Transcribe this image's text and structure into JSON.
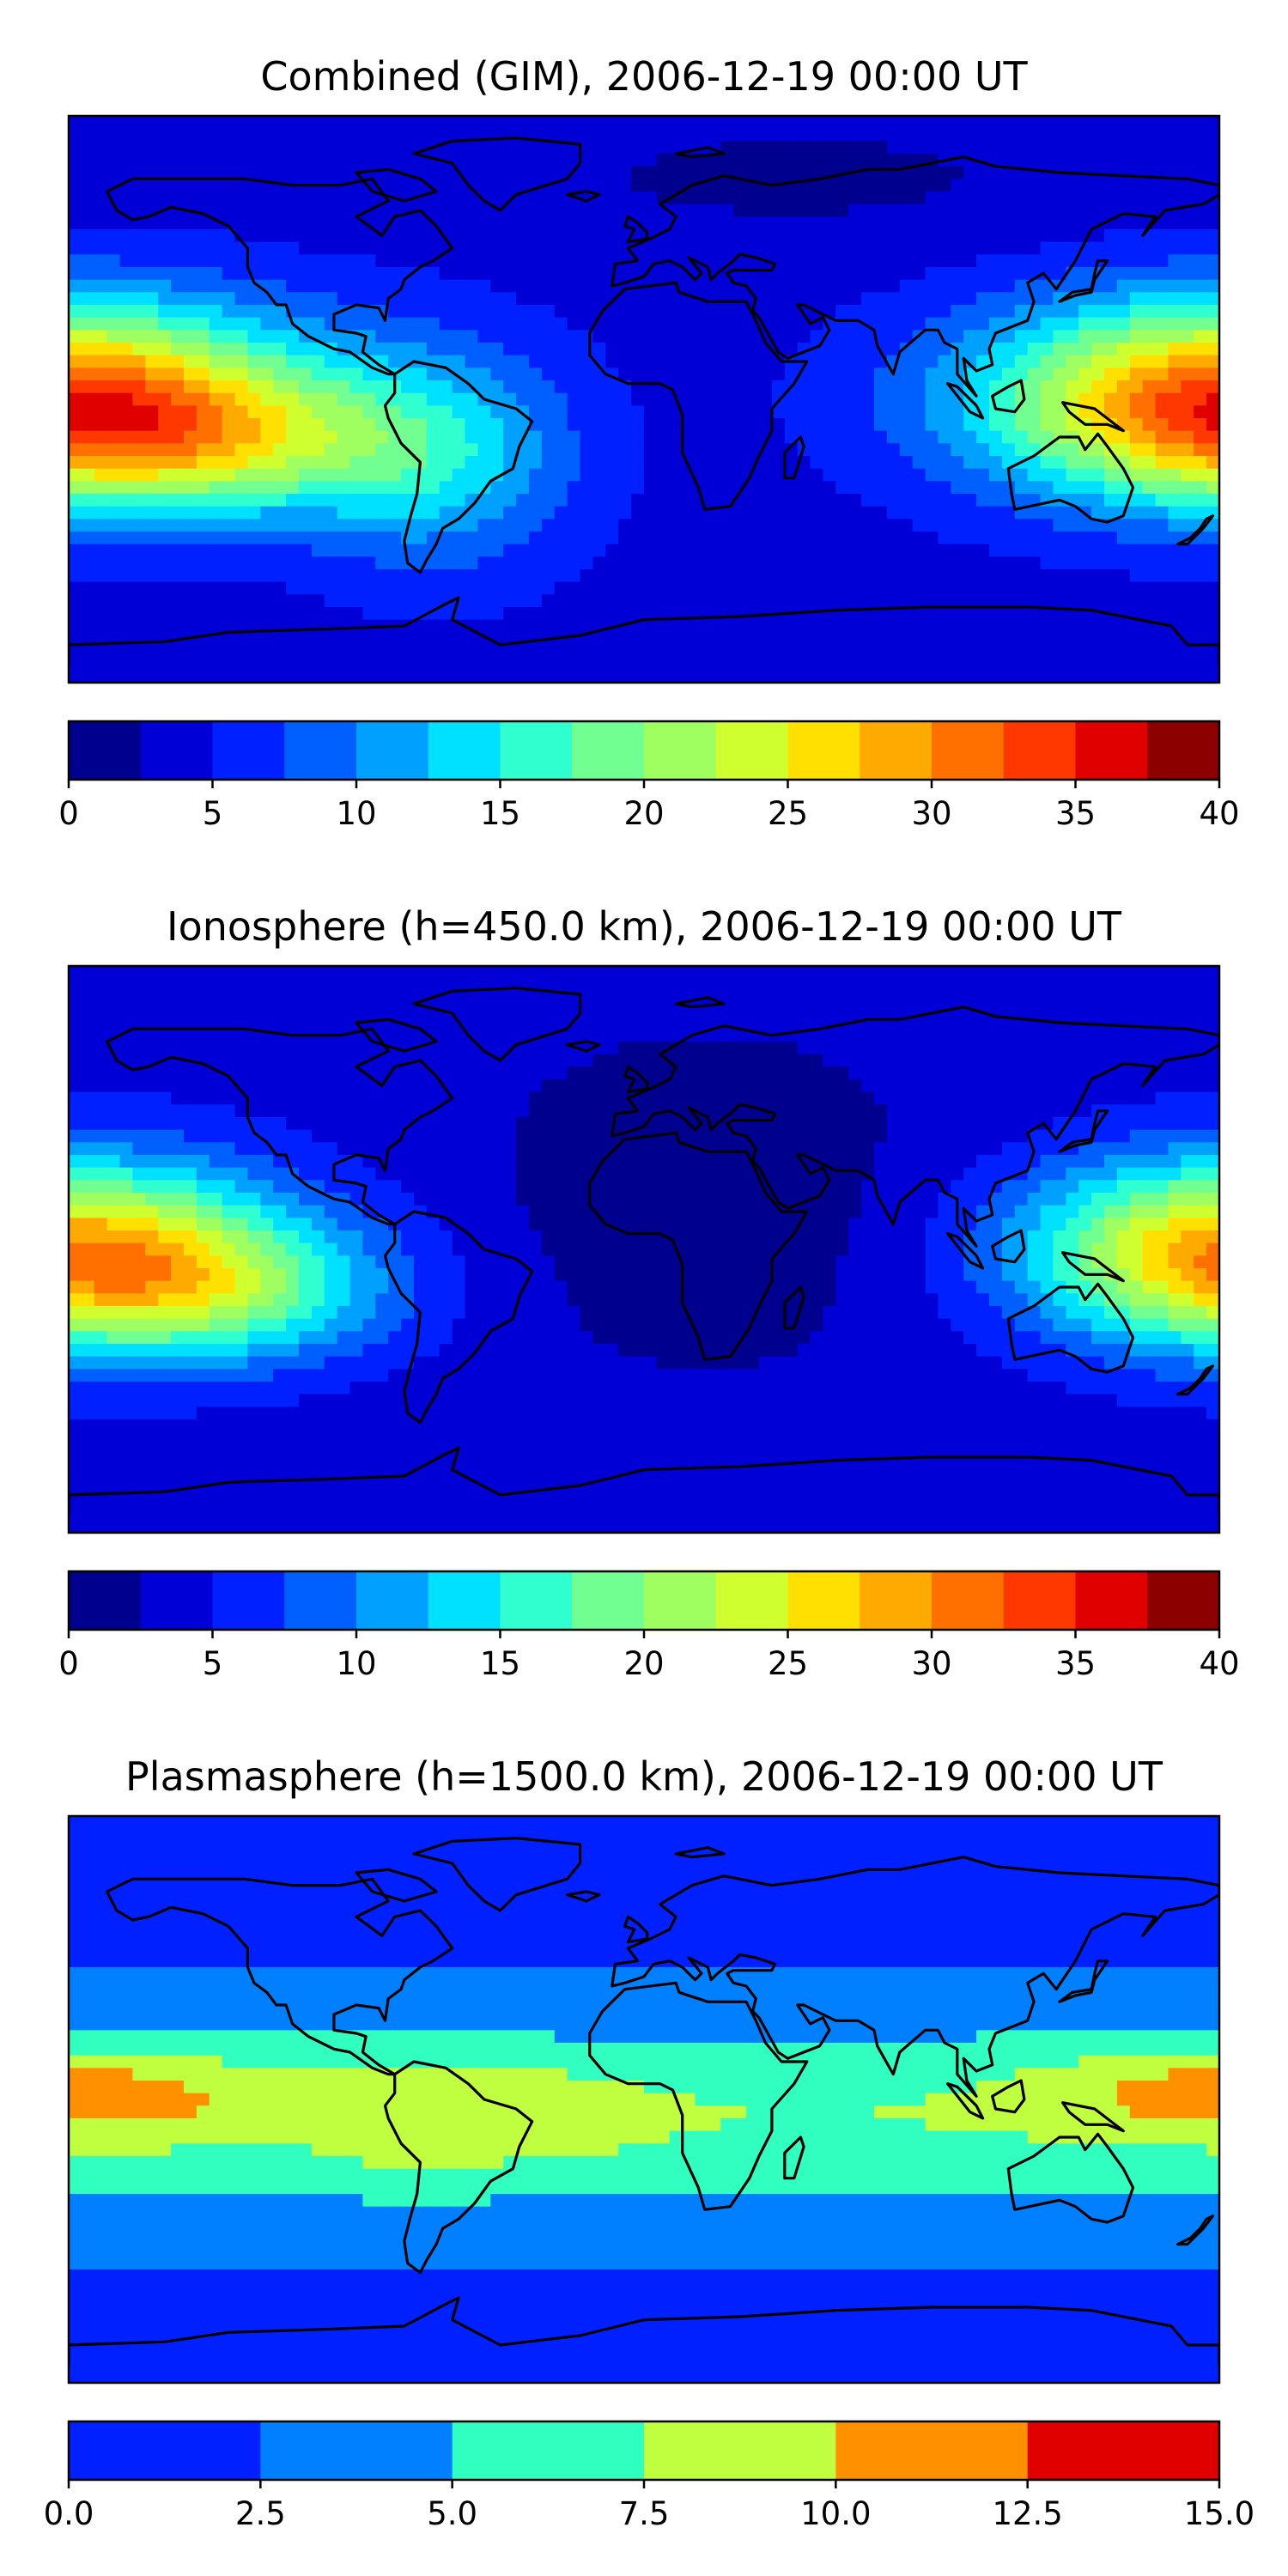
{
  "palette_jet14": [
    "#00008f",
    "#0000d6",
    "#0020ff",
    "#0060ff",
    "#00a0ff",
    "#00e0ff",
    "#30ffd0",
    "#70ff90",
    "#a0ff60",
    "#d0ff30",
    "#ffe000",
    "#ffaa00",
    "#ff7000",
    "#ff3800",
    "#e00000",
    "#8c0000"
  ],
  "chart_data": [
    {
      "type": "heatmap",
      "title": "Combined (GIM), 2006-12-19 00:00 UT",
      "colorbar": {
        "min": 0,
        "max": 40,
        "step": 2.5,
        "ticks": [
          "0",
          "5",
          "10",
          "15",
          "20",
          "25",
          "30",
          "35",
          "40"
        ]
      },
      "field": {
        "base": 4,
        "n_bands": 16,
        "blobs": [
          {
            "lon": -175,
            "lat": 0,
            "amp": 15,
            "slon": 60,
            "slat": 22
          },
          {
            "lon": -135,
            "lat": -15,
            "amp": 10,
            "slon": 45,
            "slat": 15
          },
          {
            "lon": 175,
            "lat": 0,
            "amp": 13,
            "slon": 45,
            "slat": 22
          },
          {
            "lon": -65,
            "lat": -20,
            "amp": 8,
            "slon": 30,
            "slat": 25
          },
          {
            "lon": 50,
            "lat": 70,
            "amp": -2,
            "slon": 70,
            "slat": 15
          }
        ]
      }
    },
    {
      "type": "heatmap",
      "title": "Ionosphere  (h=450.0 km), 2006-12-19 00:00 UT",
      "colorbar": {
        "min": 0,
        "max": 40,
        "step": 2.5,
        "ticks": [
          "0",
          "5",
          "10",
          "15",
          "20",
          "25",
          "30",
          "35",
          "40"
        ]
      },
      "field": {
        "base": 4,
        "n_bands": 16,
        "blobs": [
          {
            "lon": -170,
            "lat": 0,
            "amp": 13,
            "slon": 50,
            "slat": 20
          },
          {
            "lon": -135,
            "lat": -15,
            "amp": 10,
            "slon": 40,
            "slat": 15
          },
          {
            "lon": 175,
            "lat": 0,
            "amp": 11,
            "slon": 40,
            "slat": 20
          },
          {
            "lon": 20,
            "lat": 15,
            "amp": -3,
            "slon": 60,
            "slat": 45
          }
        ]
      }
    },
    {
      "type": "heatmap",
      "title": "Plasmasphere (h=1500.0 km), 2006-12-19 00:00 UT",
      "colorbar": {
        "min": 0,
        "max": 15,
        "step": 2.5,
        "ticks": [
          "0.0",
          "2.5",
          "5.0",
          "7.5",
          "10.0",
          "12.5",
          "15.0"
        ]
      },
      "field": {
        "base": 2,
        "n_bands": 6,
        "colors": [
          "#0020ff",
          "#0080ff",
          "#30ffc0",
          "#c0ff40",
          "#ff9000",
          "#e00000"
        ],
        "blobs": [
          {
            "lon": 0,
            "lat": -5,
            "amp": 5.5,
            "slon": 600,
            "slat": 22
          },
          {
            "lon": -160,
            "lat": 0,
            "amp": 2.5,
            "slon": 40,
            "slat": 10
          },
          {
            "lon": 170,
            "lat": 5,
            "amp": 2.5,
            "slon": 35,
            "slat": 10
          },
          {
            "lon": -30,
            "lat": -5,
            "amp": 2,
            "slon": 20,
            "slat": 10
          },
          {
            "lon": -70,
            "lat": -10,
            "amp": 2,
            "slon": 20,
            "slat": 15
          }
        ]
      }
    }
  ],
  "coastlines": [
    {
      "name": "north-america",
      "pts": [
        [
          -168,
          66
        ],
        [
          -160,
          70
        ],
        [
          -140,
          70
        ],
        [
          -125,
          70
        ],
        [
          -110,
          68
        ],
        [
          -95,
          68
        ],
        [
          -85,
          70
        ],
        [
          -80,
          63
        ],
        [
          -90,
          58
        ],
        [
          -82,
          52
        ],
        [
          -78,
          58
        ],
        [
          -70,
          60
        ],
        [
          -65,
          55
        ],
        [
          -60,
          48
        ],
        [
          -66,
          44
        ],
        [
          -70,
          42
        ],
        [
          -75,
          38
        ],
        [
          -76,
          35
        ],
        [
          -80,
          32
        ],
        [
          -81,
          25
        ],
        [
          -83,
          29
        ],
        [
          -90,
          30
        ],
        [
          -97,
          27
        ],
        [
          -97,
          22
        ],
        [
          -90,
          21
        ],
        [
          -87,
          20
        ],
        [
          -88,
          15
        ],
        [
          -83,
          11
        ],
        [
          -78,
          8
        ],
        [
          -80,
          8
        ],
        [
          -85,
          10
        ],
        [
          -92,
          15
        ],
        [
          -97,
          16
        ],
        [
          -105,
          20
        ],
        [
          -110,
          24
        ],
        [
          -112,
          30
        ],
        [
          -115,
          30
        ],
        [
          -118,
          34
        ],
        [
          -122,
          37
        ],
        [
          -124,
          42
        ],
        [
          -124,
          48
        ],
        [
          -130,
          55
        ],
        [
          -138,
          59
        ],
        [
          -148,
          61
        ],
        [
          -155,
          58
        ],
        [
          -160,
          57
        ],
        [
          -165,
          60
        ],
        [
          -168,
          66
        ]
      ]
    },
    {
      "name": "south-america",
      "pts": [
        [
          -78,
          8
        ],
        [
          -72,
          12
        ],
        [
          -62,
          10
        ],
        [
          -55,
          5
        ],
        [
          -50,
          0
        ],
        [
          -40,
          -3
        ],
        [
          -35,
          -7
        ],
        [
          -39,
          -15
        ],
        [
          -41,
          -22
        ],
        [
          -48,
          -26
        ],
        [
          -53,
          -33
        ],
        [
          -58,
          -38
        ],
        [
          -63,
          -41
        ],
        [
          -65,
          -46
        ],
        [
          -68,
          -51
        ],
        [
          -70,
          -55
        ],
        [
          -74,
          -52
        ],
        [
          -75,
          -45
        ],
        [
          -73,
          -37
        ],
        [
          -71,
          -30
        ],
        [
          -70,
          -20
        ],
        [
          -76,
          -14
        ],
        [
          -80,
          -6
        ],
        [
          -81,
          -2
        ],
        [
          -78,
          2
        ],
        [
          -78,
          8
        ]
      ]
    },
    {
      "name": "greenland",
      "pts": [
        [
          -72,
          78
        ],
        [
          -60,
          82
        ],
        [
          -40,
          83
        ],
        [
          -20,
          81
        ],
        [
          -20,
          75
        ],
        [
          -24,
          70
        ],
        [
          -40,
          65
        ],
        [
          -45,
          60
        ],
        [
          -50,
          63
        ],
        [
          -55,
          68
        ],
        [
          -60,
          75
        ],
        [
          -72,
          78
        ]
      ]
    },
    {
      "name": "eurasia",
      "pts": [
        [
          -10,
          36
        ],
        [
          -9,
          43
        ],
        [
          -2,
          44
        ],
        [
          -5,
          48
        ],
        [
          2,
          51
        ],
        [
          8,
          54
        ],
        [
          10,
          58
        ],
        [
          5,
          62
        ],
        [
          15,
          68
        ],
        [
          25,
          71
        ],
        [
          40,
          68
        ],
        [
          55,
          70
        ],
        [
          70,
          73
        ],
        [
          80,
          73
        ],
        [
          100,
          77
        ],
        [
          110,
          74
        ],
        [
          130,
          72
        ],
        [
          150,
          71
        ],
        [
          170,
          70
        ],
        [
          180,
          68
        ],
        [
          180,
          65
        ],
        [
          175,
          62
        ],
        [
          163,
          60
        ],
        [
          156,
          52
        ],
        [
          160,
          58
        ],
        [
          150,
          59
        ],
        [
          140,
          54
        ],
        [
          135,
          44
        ],
        [
          129,
          35
        ],
        [
          125,
          40
        ],
        [
          120,
          37
        ],
        [
          122,
          31
        ],
        [
          120,
          25
        ],
        [
          110,
          21
        ],
        [
          108,
          16
        ],
        [
          109,
          11
        ],
        [
          104,
          9
        ],
        [
          100,
          13
        ],
        [
          101,
          6
        ],
        [
          104,
          1
        ],
        [
          98,
          8
        ],
        [
          98,
          16
        ],
        [
          94,
          18
        ],
        [
          92,
          22
        ],
        [
          88,
          22
        ],
        [
          80,
          15
        ],
        [
          78,
          8
        ],
        [
          73,
          17
        ],
        [
          72,
          22
        ],
        [
          67,
          25
        ],
        [
          60,
          25
        ],
        [
          56,
          27
        ],
        [
          50,
          30
        ],
        [
          48,
          30
        ],
        [
          52,
          24
        ],
        [
          56,
          26
        ],
        [
          58,
          22
        ],
        [
          55,
          17
        ],
        [
          45,
          13
        ],
        [
          42,
          15
        ],
        [
          36,
          26
        ],
        [
          34,
          28
        ],
        [
          35,
          32
        ],
        [
          32,
          36
        ],
        [
          28,
          37
        ],
        [
          26,
          40
        ],
        [
          28,
          41
        ],
        [
          40,
          41
        ],
        [
          41,
          43
        ],
        [
          35,
          45
        ],
        [
          30,
          46
        ],
        [
          28,
          44
        ],
        [
          23,
          40
        ],
        [
          21,
          38
        ],
        [
          20,
          42
        ],
        [
          14,
          45
        ],
        [
          18,
          40
        ],
        [
          16,
          38
        ],
        [
          12,
          42
        ],
        [
          8,
          44
        ],
        [
          3,
          43
        ],
        [
          0,
          39
        ],
        [
          -6,
          37
        ],
        [
          -10,
          36
        ]
      ]
    },
    {
      "name": "africa",
      "pts": [
        [
          -17,
          21
        ],
        [
          -13,
          28
        ],
        [
          -6,
          35
        ],
        [
          10,
          37
        ],
        [
          11,
          34
        ],
        [
          20,
          31
        ],
        [
          32,
          31
        ],
        [
          35,
          25
        ],
        [
          38,
          18
        ],
        [
          43,
          12
        ],
        [
          51,
          12
        ],
        [
          47,
          5
        ],
        [
          40,
          -3
        ],
        [
          40,
          -10
        ],
        [
          36,
          -18
        ],
        [
          33,
          -25
        ],
        [
          27,
          -34
        ],
        [
          19,
          -35
        ],
        [
          17,
          -28
        ],
        [
          12,
          -17
        ],
        [
          12,
          -5
        ],
        [
          9,
          3
        ],
        [
          5,
          5
        ],
        [
          -5,
          5
        ],
        [
          -12,
          8
        ],
        [
          -17,
          14
        ],
        [
          -17,
          21
        ]
      ]
    },
    {
      "name": "australia",
      "pts": [
        [
          114,
          -22
        ],
        [
          122,
          -18
        ],
        [
          130,
          -12
        ],
        [
          136,
          -12
        ],
        [
          138,
          -16
        ],
        [
          142,
          -11
        ],
        [
          145,
          -15
        ],
        [
          150,
          -22
        ],
        [
          153,
          -28
        ],
        [
          150,
          -37
        ],
        [
          145,
          -39
        ],
        [
          140,
          -38
        ],
        [
          135,
          -34
        ],
        [
          130,
          -32
        ],
        [
          116,
          -35
        ],
        [
          115,
          -30
        ],
        [
          114,
          -22
        ]
      ]
    },
    {
      "name": "antarctica",
      "pts": [
        [
          -180,
          -84
        ],
        [
          -180,
          -78
        ],
        [
          -150,
          -77
        ],
        [
          -130,
          -74
        ],
        [
          -100,
          -73
        ],
        [
          -75,
          -72
        ],
        [
          -62,
          -65
        ],
        [
          -58,
          -63
        ],
        [
          -60,
          -70
        ],
        [
          -45,
          -78
        ],
        [
          -20,
          -75
        ],
        [
          0,
          -70
        ],
        [
          30,
          -69
        ],
        [
          60,
          -67
        ],
        [
          90,
          -66
        ],
        [
          120,
          -66
        ],
        [
          140,
          -67
        ],
        [
          165,
          -72
        ],
        [
          170,
          -78
        ],
        [
          180,
          -78
        ],
        [
          180,
          -84
        ]
      ]
    },
    {
      "name": "britain",
      "pts": [
        [
          -5,
          50
        ],
        [
          1,
          51
        ],
        [
          1,
          53
        ],
        [
          -2,
          56
        ],
        [
          -5,
          58
        ],
        [
          -6,
          55
        ],
        [
          -3,
          54
        ],
        [
          -5,
          50
        ]
      ]
    },
    {
      "name": "madagascar",
      "pts": [
        [
          44,
          -25
        ],
        [
          47,
          -25
        ],
        [
          50,
          -15
        ],
        [
          49,
          -12
        ],
        [
          44,
          -17
        ],
        [
          44,
          -25
        ]
      ]
    },
    {
      "name": "japan",
      "pts": [
        [
          130,
          31
        ],
        [
          134,
          34
        ],
        [
          140,
          35
        ],
        [
          141,
          40
        ],
        [
          142,
          44
        ],
        [
          145,
          44
        ],
        [
          141,
          38
        ],
        [
          140,
          34
        ],
        [
          135,
          33
        ],
        [
          130,
          31
        ]
      ]
    },
    {
      "name": "new-guinea",
      "pts": [
        [
          131,
          -1
        ],
        [
          141,
          -3
        ],
        [
          150,
          -10
        ],
        [
          145,
          -8
        ],
        [
          138,
          -8
        ],
        [
          133,
          -4
        ],
        [
          131,
          -1
        ]
      ]
    },
    {
      "name": "borneo",
      "pts": [
        [
          109,
          1
        ],
        [
          114,
          4
        ],
        [
          118,
          6
        ],
        [
          119,
          0
        ],
        [
          116,
          -4
        ],
        [
          110,
          -3
        ],
        [
          109,
          1
        ]
      ]
    },
    {
      "name": "sumatra",
      "pts": [
        [
          95,
          5
        ],
        [
          98,
          4
        ],
        [
          104,
          -2
        ],
        [
          106,
          -6
        ],
        [
          102,
          -4
        ],
        [
          95,
          5
        ]
      ]
    },
    {
      "name": "new-zealand",
      "pts": [
        [
          167,
          -46
        ],
        [
          171,
          -44
        ],
        [
          174,
          -41
        ],
        [
          176,
          -38
        ],
        [
          178,
          -37
        ],
        [
          175,
          -41
        ],
        [
          170,
          -46
        ],
        [
          167,
          -46
        ]
      ]
    },
    {
      "name": "baffin-island",
      "pts": [
        [
          -90,
          72
        ],
        [
          -80,
          73
        ],
        [
          -70,
          70
        ],
        [
          -65,
          66
        ],
        [
          -75,
          63
        ],
        [
          -85,
          66
        ],
        [
          -90,
          72
        ]
      ]
    },
    {
      "name": "svalbard",
      "pts": [
        [
          10,
          78
        ],
        [
          20,
          80
        ],
        [
          25,
          78
        ],
        [
          15,
          77
        ],
        [
          10,
          78
        ]
      ]
    },
    {
      "name": "iceland",
      "pts": [
        [
          -24,
          65
        ],
        [
          -18,
          66
        ],
        [
          -14,
          65
        ],
        [
          -18,
          63
        ],
        [
          -24,
          65
        ]
      ]
    }
  ]
}
